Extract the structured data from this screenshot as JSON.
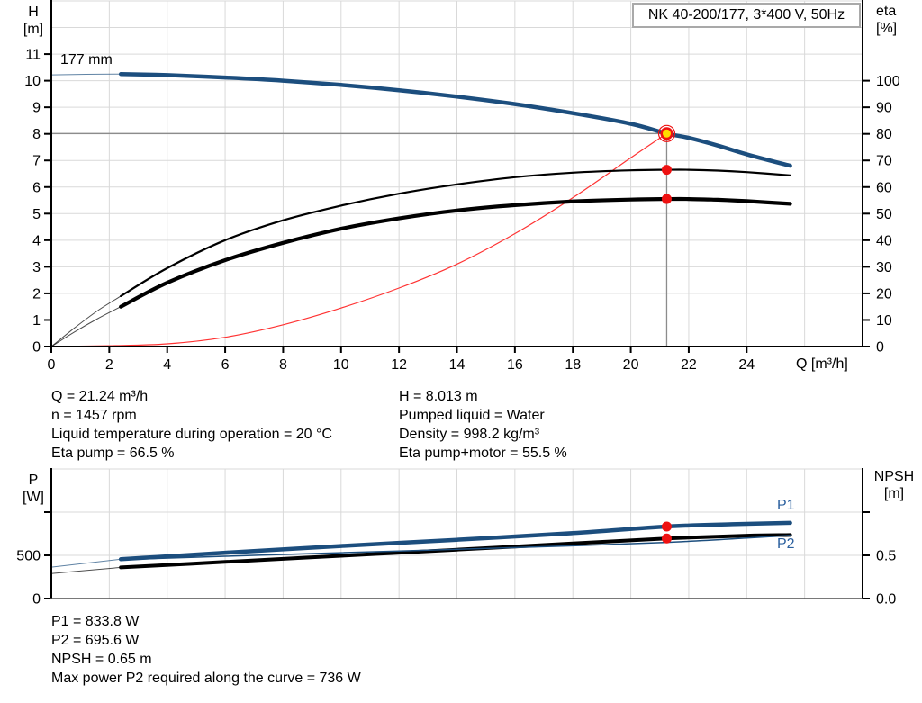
{
  "colors": {
    "curve_blue": "#1C4E7E",
    "label_blue": "#2A5F9E",
    "curve_black": "#000000",
    "system_red": "#FF3333",
    "dot_red": "#EE1111",
    "duty_yellow": "#FFDD00",
    "grid_gray": "#D9D9D9",
    "duty_line_gray": "#8C8C8C",
    "axis_black": "#000000",
    "title_border_gray": "#A9A9A9"
  },
  "chart_data": [
    {
      "type": "line",
      "title": "NK 40-200/177, 3*400 V, 50Hz",
      "xlabel": "Q [m³/h]",
      "ylabel_left": "H\n[m]",
      "ylabel_right": "eta\n[%]",
      "xlim": [
        0,
        28
      ],
      "ylim_left": [
        0,
        13
      ],
      "ylim_right": [
        0,
        130
      ],
      "x_ticks": [
        0,
        2,
        4,
        6,
        8,
        10,
        12,
        14,
        16,
        18,
        20,
        22,
        24
      ],
      "y_ticks_left": [
        0,
        1,
        2,
        3,
        4,
        5,
        6,
        7,
        8,
        9,
        10,
        11
      ],
      "y_ticks_right": [
        0,
        10,
        20,
        30,
        40,
        50,
        60,
        70,
        80,
        90,
        100
      ],
      "grid": "on",
      "impeller_label": "177 mm",
      "series": [
        {
          "name": "system-curve",
          "axis": "left",
          "color": "#FF3333",
          "width": 1.2,
          "points": [
            [
              0,
              0
            ],
            [
              2,
              0.03
            ],
            [
              4,
              0.1
            ],
            [
              6,
              0.35
            ],
            [
              8,
              0.82
            ],
            [
              10,
              1.45
            ],
            [
              12,
              2.2
            ],
            [
              14,
              3.1
            ],
            [
              16,
              4.25
            ],
            [
              18,
              5.6
            ],
            [
              20,
              7.1
            ],
            [
              21.24,
              8.013
            ]
          ]
        },
        {
          "name": "eta-pump-curve",
          "axis": "right",
          "color": "#000000",
          "width": 2.2,
          "lead": [
            [
              0,
              0
            ],
            [
              0.8,
              7
            ],
            [
              1.6,
              13.5
            ],
            [
              2.4,
              19
            ]
          ],
          "points": [
            [
              2.4,
              19
            ],
            [
              4,
              29.5
            ],
            [
              6,
              40
            ],
            [
              8,
              47.5
            ],
            [
              10,
              53
            ],
            [
              12,
              57.5
            ],
            [
              14,
              61
            ],
            [
              16,
              63.7
            ],
            [
              18,
              65.4
            ],
            [
              20,
              66.3
            ],
            [
              21.24,
              66.5
            ],
            [
              22,
              66.5
            ],
            [
              23,
              66.2
            ],
            [
              24,
              65.6
            ],
            [
              25.5,
              64.4
            ]
          ]
        },
        {
          "name": "eta-pump-motor-curve",
          "axis": "right",
          "color": "#000000",
          "width": 4.2,
          "lead": [
            [
              0,
              0
            ],
            [
              0.8,
              5.5
            ],
            [
              1.6,
              10.5
            ],
            [
              2.4,
              15
            ]
          ],
          "points": [
            [
              2.4,
              15
            ],
            [
              4,
              24
            ],
            [
              6,
              32.5
            ],
            [
              8,
              39
            ],
            [
              10,
              44.3
            ],
            [
              12,
              48.2
            ],
            [
              14,
              51.2
            ],
            [
              16,
              53.2
            ],
            [
              18,
              54.6
            ],
            [
              20,
              55.3
            ],
            [
              21.24,
              55.5
            ],
            [
              22,
              55.5
            ],
            [
              23,
              55.2
            ],
            [
              24,
              54.7
            ],
            [
              25.5,
              53.7
            ]
          ]
        },
        {
          "name": "head-curve",
          "label": "177 mm",
          "axis": "left",
          "color": "#1C4E7E",
          "width": 4.5,
          "lead": [
            [
              0,
              10.22
            ],
            [
              1.2,
              10.24
            ],
            [
              2.4,
              10.25
            ]
          ],
          "points": [
            [
              2.4,
              10.25
            ],
            [
              4,
              10.21
            ],
            [
              6,
              10.12
            ],
            [
              8,
              10.0
            ],
            [
              10,
              9.84
            ],
            [
              12,
              9.64
            ],
            [
              14,
              9.4
            ],
            [
              16,
              9.12
            ],
            [
              18,
              8.78
            ],
            [
              20,
              8.38
            ],
            [
              21.24,
              8.013
            ],
            [
              22,
              7.85
            ],
            [
              23,
              7.56
            ],
            [
              24,
              7.23
            ],
            [
              25.5,
              6.8
            ]
          ]
        }
      ],
      "duty_point": {
        "q": 21.24,
        "h": 8.013,
        "eta_pump": 66.5,
        "eta_pump_motor": 55.5
      }
    },
    {
      "type": "line",
      "title": "",
      "xlabel": "",
      "ylabel_left": "P\n[W]",
      "ylabel_right": "NPSH\n[m]",
      "xlim": [
        0,
        28
      ],
      "ylim_left": [
        0,
        1500
      ],
      "ylim_right": [
        0,
        1.5
      ],
      "y_ticks_left": [
        {
          "v": 0,
          "t": "0"
        },
        {
          "v": 500,
          "t": "500"
        },
        {
          "v": 1000,
          "t": ""
        }
      ],
      "y_ticks_right": [
        {
          "v": 0,
          "t": "0.0"
        },
        {
          "v": 0.5,
          "t": "0.5"
        },
        {
          "v": 1,
          "t": ""
        }
      ],
      "grid": "on",
      "series": [
        {
          "name": "p2-curve",
          "label": "P2",
          "axis": "left",
          "color": "#000000",
          "width": 4,
          "lead": [
            [
              0,
              290
            ],
            [
              2.4,
              360
            ]
          ],
          "points": [
            [
              2.4,
              360
            ],
            [
              6,
              424
            ],
            [
              10,
              495
            ],
            [
              14,
              566
            ],
            [
              18,
              637
            ],
            [
              21.24,
              695.6
            ],
            [
              24,
              728
            ],
            [
              25.5,
              735
            ]
          ]
        },
        {
          "name": "npsh-curve",
          "axis": "right",
          "color": "#1C4E7E",
          "width": 1.5,
          "points": [
            [
              2.4,
              0.45
            ],
            [
              6,
              0.49
            ],
            [
              10,
              0.53
            ],
            [
              14,
              0.57
            ],
            [
              18,
              0.61
            ],
            [
              21.24,
              0.65
            ],
            [
              24,
              0.7
            ],
            [
              25.5,
              0.73
            ]
          ]
        },
        {
          "name": "p1-curve",
          "label": "P1",
          "axis": "left",
          "color": "#1C4E7E",
          "width": 4.5,
          "lead": [
            [
              0,
              364
            ],
            [
              2.4,
              455
            ]
          ],
          "points": [
            [
              2.4,
              455
            ],
            [
              6,
              530
            ],
            [
              10,
              608
            ],
            [
              14,
              680
            ],
            [
              18,
              757
            ],
            [
              21.24,
              833.8
            ],
            [
              23.5,
              860
            ],
            [
              25.5,
              876
            ]
          ]
        }
      ],
      "duty_point": {
        "q": 21.24,
        "p1": 833.8,
        "p2": 695.6,
        "npsh": 0.65
      }
    }
  ],
  "annotations_main": {
    "col1": [
      "Q = 21.24 m³/h",
      "n = 1457 rpm",
      "Liquid temperature during operation = 20 °C",
      "Eta pump = 66.5 %"
    ],
    "col2": [
      "H = 8.013 m",
      "Pumped liquid = Water",
      "Density = 998.2 kg/m³",
      "Eta pump+motor = 55.5 %"
    ]
  },
  "annotations_power": [
    "P1 = 833.8 W",
    "P2 = 695.6 W",
    "NPSH = 0.65 m",
    "Max power P2 required along the curve = 736 W"
  ]
}
